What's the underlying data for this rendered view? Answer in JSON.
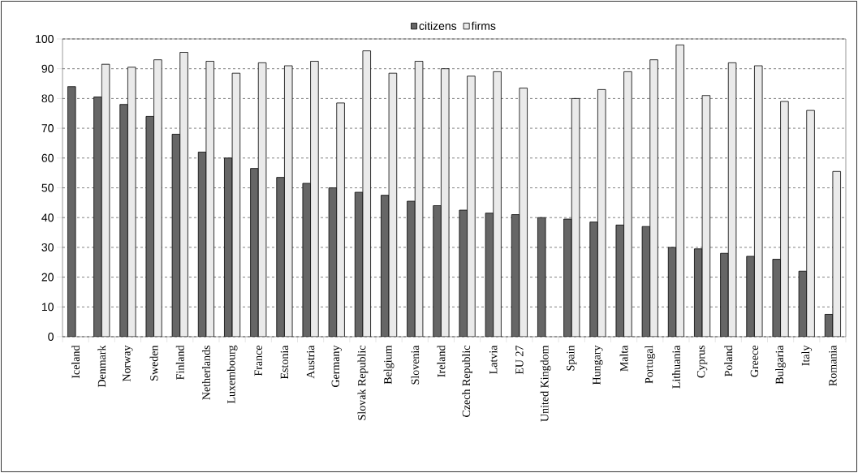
{
  "chart_data": {
    "type": "bar",
    "categories": [
      "Iceland",
      "Denmark",
      "Norway",
      "Sweden",
      "Finland",
      "Netherlands",
      "Luxembourg",
      "France",
      "Estonia",
      "Austria",
      "Germany",
      "Slovak Republic",
      "Belgium",
      "Slovenia",
      "Ireland",
      "Czech Republic",
      "Latvia",
      "EU 27",
      "United Kingdom",
      "Spain",
      "Hungary",
      "Malta",
      "Portugal",
      "Lithuania",
      "Cyprus",
      "Poland",
      "Greece",
      "Bulgaria",
      "Italy",
      "Romania"
    ],
    "series": [
      {
        "name": "citizens",
        "color": "#666666",
        "values": [
          84,
          80.5,
          78,
          74,
          68,
          62,
          60,
          56.5,
          53.5,
          51.5,
          50,
          48.5,
          47.5,
          45.5,
          44,
          42.5,
          41.5,
          41,
          40,
          39.5,
          38.5,
          37.5,
          37,
          30,
          29.5,
          28,
          27,
          26,
          22,
          7.5
        ]
      },
      {
        "name": "firms",
        "color": "#eaeaea",
        "values": [
          null,
          91.5,
          90.5,
          93,
          95.5,
          92.5,
          88.5,
          92,
          91,
          92.5,
          78.5,
          96,
          88.5,
          92.5,
          90,
          87.5,
          89,
          83.5,
          null,
          80,
          83,
          89,
          93,
          98,
          81,
          92,
          91,
          79,
          76,
          55.5
        ]
      }
    ],
    "ylim": [
      0,
      100
    ],
    "yticks": [
      0,
      10,
      20,
      30,
      40,
      50,
      60,
      70,
      80,
      90,
      100
    ],
    "grid": "y",
    "legend": "top"
  }
}
